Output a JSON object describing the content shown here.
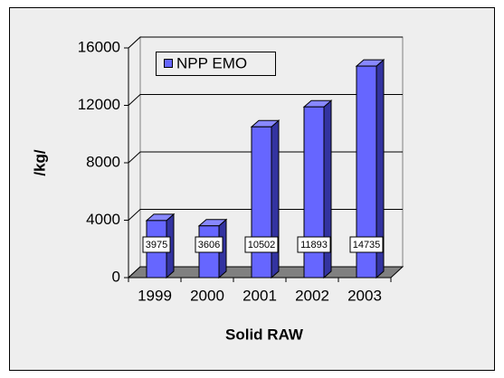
{
  "chart_data": {
    "type": "bar3d",
    "y_label": "/kg/",
    "x_label": "Solid RAW",
    "categories": [
      "1999",
      "2000",
      "2001",
      "2002",
      "2003"
    ],
    "series": [
      {
        "name": "NPP EMO",
        "color": "#6666ff",
        "values": [
          3975,
          3606,
          10502,
          11893,
          14735
        ]
      }
    ],
    "ylim": [
      0,
      16000
    ],
    "yticks": [
      0,
      4000,
      8000,
      12000,
      16000
    ],
    "grid": true,
    "legend": "top-left"
  }
}
